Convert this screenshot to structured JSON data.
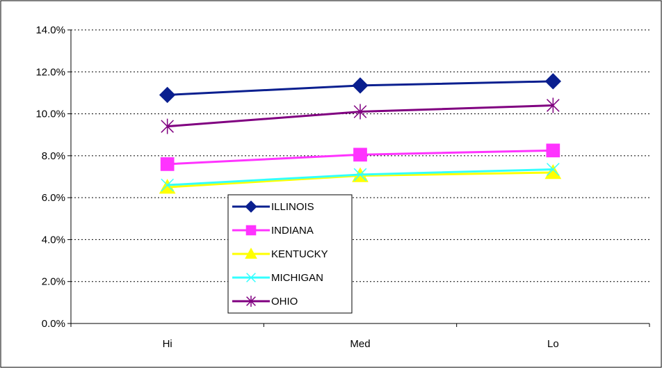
{
  "chart_data": {
    "type": "line",
    "title": "",
    "xlabel": "",
    "ylabel": "",
    "categories": [
      "Hi",
      "Med",
      "Lo"
    ],
    "ylim": [
      0,
      0.14
    ],
    "yticks": [
      "0.0%",
      "2.0%",
      "4.0%",
      "6.0%",
      "8.0%",
      "10.0%",
      "12.0%",
      "14.0%"
    ],
    "grid": "horizontal dotted",
    "legend_position": "center-left",
    "series": [
      {
        "name": "ILLINOIS",
        "values": [
          0.109,
          0.1135,
          0.1155
        ],
        "color": "#0a1f8f",
        "marker": "diamond"
      },
      {
        "name": "INDIANA",
        "values": [
          0.076,
          0.0805,
          0.0825
        ],
        "color": "#ff33ff",
        "marker": "square"
      },
      {
        "name": "KENTUCKY",
        "values": [
          0.065,
          0.0705,
          0.072
        ],
        "color": "#ffff00",
        "marker": "triangle"
      },
      {
        "name": "MICHIGAN",
        "values": [
          0.066,
          0.071,
          0.0735
        ],
        "color": "#33ffff",
        "marker": "x"
      },
      {
        "name": "OHIO",
        "values": [
          0.094,
          0.101,
          0.104
        ],
        "color": "#800080",
        "marker": "star"
      }
    ]
  }
}
